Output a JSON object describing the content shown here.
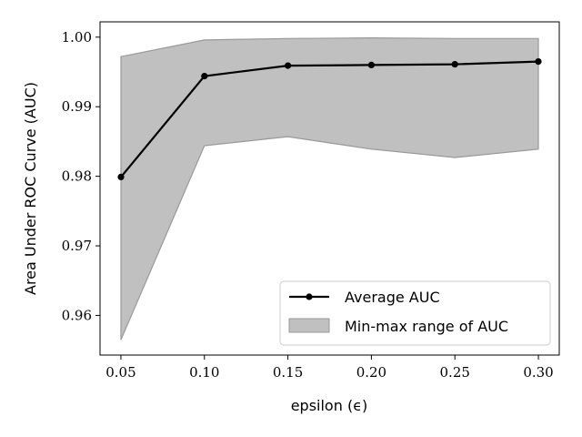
{
  "chart_data": {
    "type": "line",
    "title": "",
    "xlabel": "epsilon (ϵ)",
    "ylabel": "Area Under ROC Curve (AUC)",
    "x": [
      0.05,
      0.1,
      0.15,
      0.2,
      0.25,
      0.3
    ],
    "xlim": [
      0.0375,
      0.3125
    ],
    "ylim": [
      0.9543,
      1.0022
    ],
    "xticks": [
      0.05,
      0.1,
      0.15,
      0.2,
      0.25,
      0.3
    ],
    "xtick_labels": [
      "0.05",
      "0.10",
      "0.15",
      "0.20",
      "0.25",
      "0.30"
    ],
    "yticks": [
      0.96,
      0.97,
      0.98,
      0.99,
      1.0
    ],
    "ytick_labels": [
      "0.96",
      "0.97",
      "0.98",
      "0.99",
      "1.00"
    ],
    "grid": false,
    "legend_position": "bottom-right",
    "series": [
      {
        "name": "Average AUC",
        "kind": "line-marker",
        "color": "#000000",
        "values": [
          0.9799,
          0.9944,
          0.9959,
          0.996,
          0.9961,
          0.9965
        ]
      }
    ],
    "band": {
      "name": "Min-max range of AUC",
      "color": "#c0c0c0",
      "edge_color": "#999999",
      "lower": [
        0.9565,
        0.9844,
        0.9857,
        0.9839,
        0.9827,
        0.9839
      ],
      "upper": [
        0.9972,
        0.9996,
        0.9998,
        0.9999,
        0.9998,
        0.9998
      ]
    }
  }
}
